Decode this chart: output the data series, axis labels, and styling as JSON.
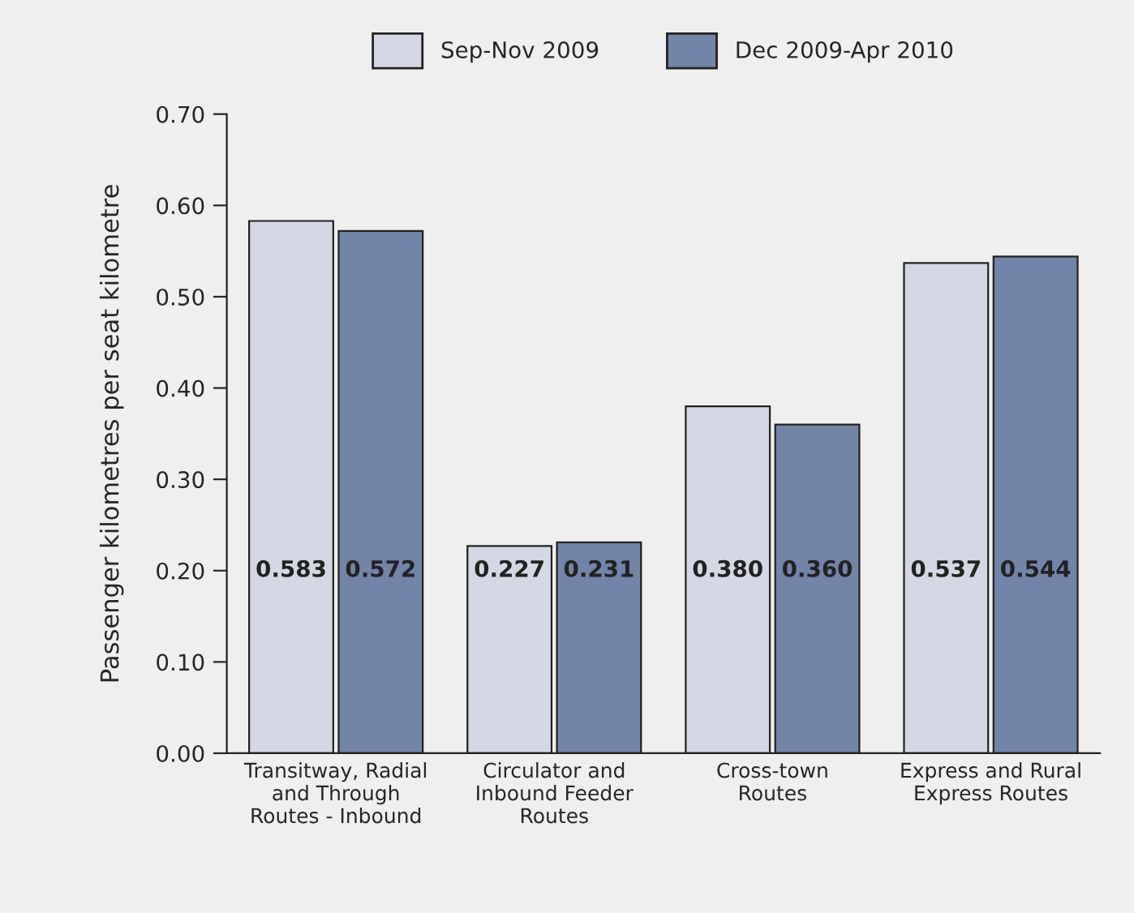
{
  "chart_data": {
    "type": "bar",
    "ylabel": "Passenger kilometres per seat kilometre",
    "categories": [
      "Transitway, Radial\nand Through\nRoutes - Inbound",
      "Circulator and\nInbound Feeder\nRoutes",
      "Cross-town\nRoutes",
      "Express and Rural\nExpress Routes"
    ],
    "series": [
      {
        "name": "Sep-Nov 2009",
        "color": "#d4d8e4",
        "values": [
          0.583,
          0.227,
          0.38,
          0.537
        ],
        "value_labels": [
          "0.583",
          "0.227",
          "0.380",
          "0.537"
        ]
      },
      {
        "name": "Dec 2009-Apr 2010",
        "color": "#7384a9",
        "values": [
          0.572,
          0.231,
          0.36,
          0.544
        ],
        "value_labels": [
          "0.572",
          "0.231",
          "0.360",
          "0.544"
        ]
      }
    ],
    "ylim": [
      0,
      0.7
    ],
    "yticks": [
      {
        "value": 0,
        "label": "0.00"
      },
      {
        "value": 0.1,
        "label": "0.10"
      },
      {
        "value": 0.2,
        "label": "0.20"
      },
      {
        "value": 0.3,
        "label": "0.30"
      },
      {
        "value": 0.4,
        "label": "0.40"
      },
      {
        "value": 0.5,
        "label": "0.50"
      },
      {
        "value": 0.6,
        "label": "0.60"
      },
      {
        "value": 0.7,
        "label": "0.70"
      }
    ],
    "grid": false,
    "legend": "top"
  }
}
